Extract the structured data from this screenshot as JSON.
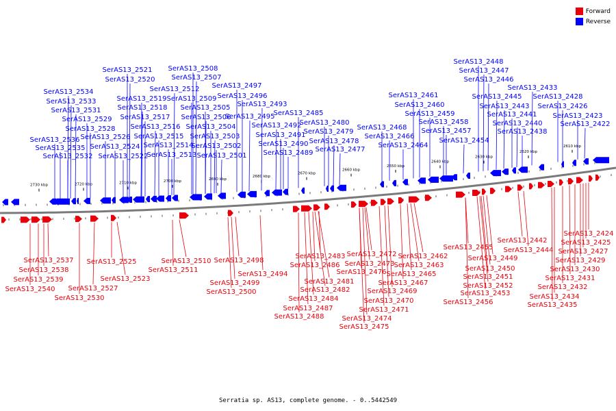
{
  "legend": [
    {
      "label": "Forward",
      "color": "#e8000b"
    },
    {
      "label": "Reverse",
      "color": "#0000ff"
    }
  ],
  "caption": "Serratia sp. AS13, complete genome. - 0..5442549",
  "ruler": [
    "2730 kbp",
    "2720 kbp",
    "2710 kbp",
    "2700 kbp",
    "2690 kbp",
    "2680 kbp",
    "2670 kbp",
    "2660 kbp",
    "2650 kbp",
    "2640 kbp",
    "2630 kbp",
    "2620 kbp",
    "2610 kbp"
  ],
  "reverse_labels": [
    "SerAS13_2521",
    "SerAS13_2508",
    "SerAS13_2520",
    "SerAS13_2507",
    "SerAS13_2512",
    "SerAS13_2497",
    "SerAS13_2534",
    "SerAS13_2519",
    "SerAS13_2509",
    "SerAS13_2496",
    "SerAS13_2533",
    "SerAS13_2518",
    "SerAS13_2505",
    "SerAS13_2493",
    "SerAS13_2531",
    "SerAS13_2517",
    "SerAS13_2506",
    "SerAS13_2495",
    "SerAS13_2485",
    "SerAS13_2529",
    "SerAS13_2516",
    "SerAS13_2504",
    "SerAS13_2492",
    "SerAS13_2480",
    "SerAS13_2528",
    "SerAS13_2515",
    "SerAS13_2491",
    "SerAS13_2479",
    "SerAS13_2526",
    "SerAS13_2503",
    "SerAS13_2478",
    "SerAS13_2536",
    "SerAS13_2524",
    "SerAS13_2514",
    "SerAS13_2502",
    "SerAS13_2490",
    "SerAS13_2477",
    "SerAS13_2535",
    "SerAS13_2522",
    "SerAS13_2513",
    "SerAS13_2501",
    "SerAS13_2489",
    "SerAS13_2532",
    "SerAS13_2448",
    "SerAS13_2447",
    "SerAS13_2446",
    "SerAS13_2433",
    "SerAS13_2461",
    "SerAS13_2445",
    "SerAS13_2428",
    "SerAS13_2460",
    "SerAS13_2443",
    "SerAS13_2426",
    "SerAS13_2459",
    "SerAS13_2441",
    "SerAS13_2423",
    "SerAS13_2468",
    "SerAS13_2458",
    "SerAS13_2440",
    "SerAS13_2422",
    "SerAS13_2457",
    "SerAS13_2438",
    "SerAS13_2466",
    "SerAS13_2454",
    "SerAS13_2464"
  ],
  "forward_labels": [
    "SerAS13_2537",
    "SerAS13_2538",
    "SerAS13_2539",
    "SerAS13_2540",
    "SerAS13_2525",
    "SerAS13_2523",
    "SerAS13_2527",
    "SerAS13_2530",
    "SerAS13_2510",
    "SerAS13_2511",
    "SerAS13_2498",
    "SerAS13_2499",
    "SerAS13_2500",
    "SerAS13_2494",
    "SerAS13_2483",
    "SerAS13_2486",
    "SerAS13_2481",
    "SerAS13_2482",
    "SerAS13_2484",
    "SerAS13_2487",
    "SerAS13_2488",
    "SerAS13_2472",
    "SerAS13_2473",
    "SerAS13_2476",
    "SerAS13_2469",
    "SerAS13_2470",
    "SerAS13_2471",
    "SerAS13_2474",
    "SerAS13_2475",
    "SerAS13_2462",
    "SerAS13_2463",
    "SerAS13_2465",
    "SerAS13_2467",
    "SerAS13_2455",
    "SerAS13_2449",
    "SerAS13_2450",
    "SerAS13_2451",
    "SerAS13_2452",
    "SerAS13_2453",
    "SerAS13_2456",
    "SerAS13_2442",
    "SerAS13_2444",
    "SerAS13_2424",
    "SerAS13_2425",
    "SerAS13_2427",
    "SerAS13_2429",
    "SerAS13_2430",
    "SerAS13_2431",
    "SerAS13_2432",
    "SerAS13_2434",
    "SerAS13_2435"
  ]
}
